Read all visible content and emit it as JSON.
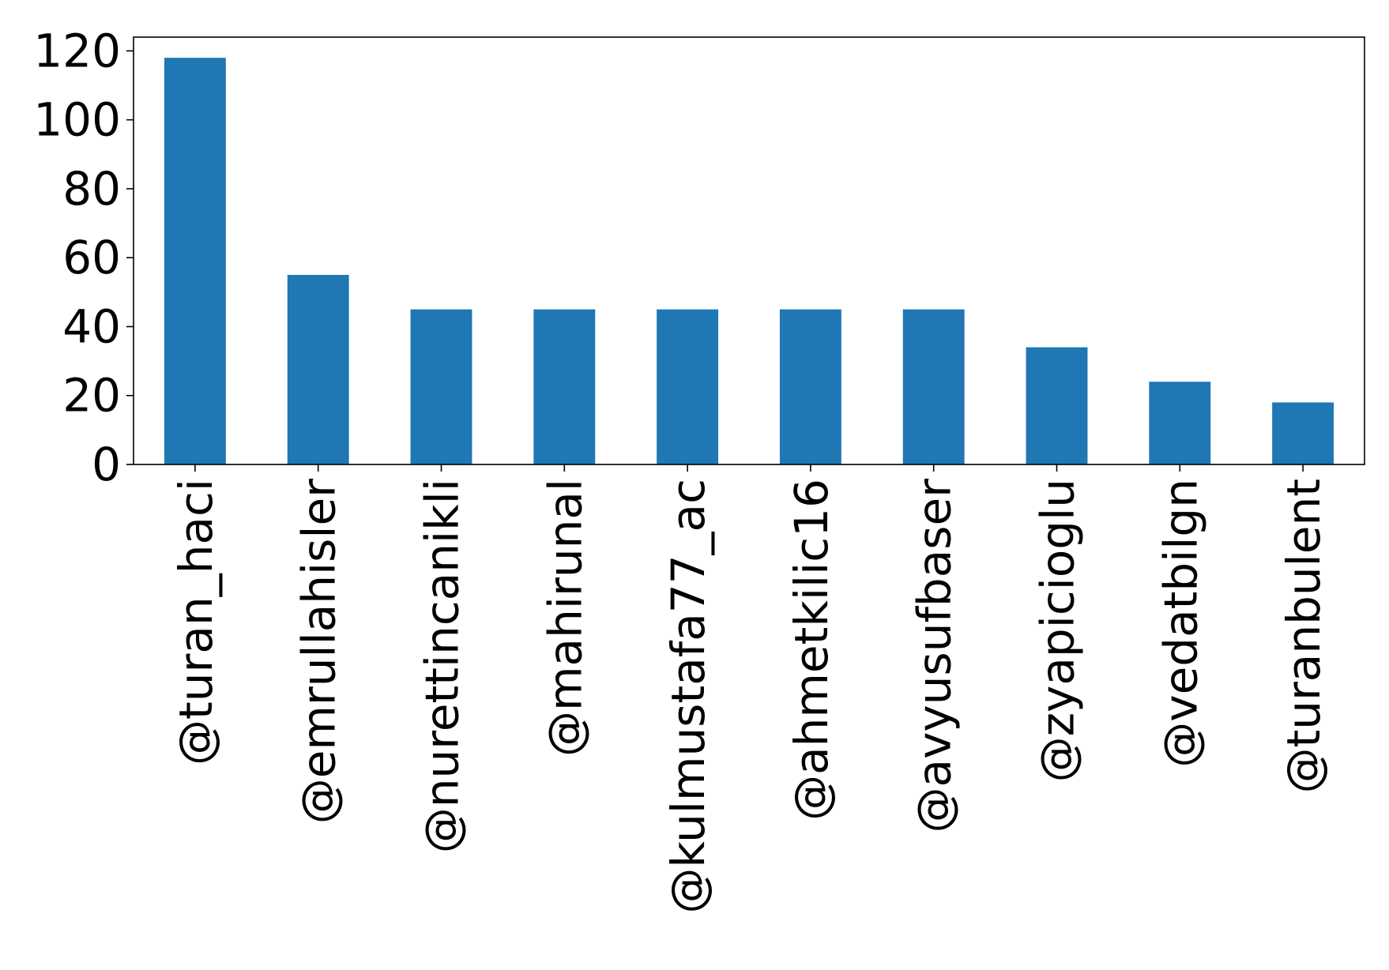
{
  "chart_data": {
    "type": "bar",
    "title": "",
    "xlabel": "",
    "ylabel": "",
    "categories": [
      "@turan_haci",
      "@emrullahisler",
      "@nurettincanikli",
      "@mahirunal",
      "@kulmustafa77_ac",
      "@ahmetkilic16",
      "@avyusufbaser",
      "@zyapicioglu",
      "@vedatbilgn",
      "@turanbulent"
    ],
    "values": [
      118,
      55,
      45,
      45,
      45,
      45,
      45,
      34,
      24,
      18
    ],
    "ylim": [
      0,
      124
    ],
    "yticks": [
      0,
      20,
      40,
      60,
      80,
      100,
      120
    ],
    "ytick_labels": [
      "0",
      "20",
      "40",
      "60",
      "80",
      "100",
      "120"
    ],
    "grid": false,
    "legend": "none",
    "colors": {
      "bar": "#1f77b4",
      "axes": "#000000",
      "background": "#ffffff"
    }
  }
}
